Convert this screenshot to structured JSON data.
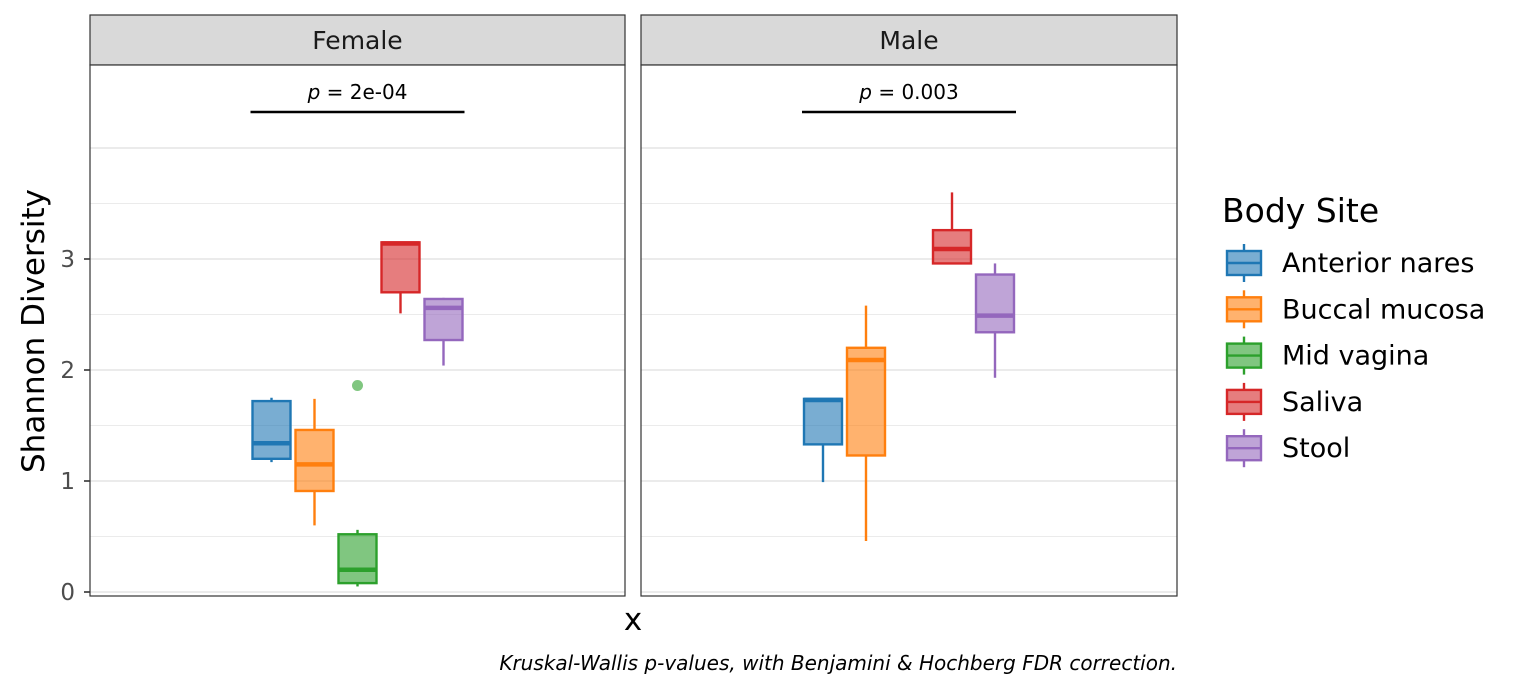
{
  "chart_data": {
    "type": "box",
    "facets": [
      "Female",
      "Male"
    ],
    "xlabel": "x",
    "ylabel": "Shannon Diversity",
    "ylim": [
      -0.05,
      4.75
    ],
    "yticks": [
      0,
      1,
      2,
      3
    ],
    "grid": true,
    "legend": {
      "title": "Body Site",
      "position": "right",
      "entries": [
        "Anterior nares",
        "Buccal mucosa",
        "Mid vagina",
        "Saliva",
        "Stool"
      ]
    },
    "colors": {
      "Anterior nares": "#1f77b4",
      "Buccal mucosa": "#ff7f0e",
      "Mid vagina": "#2ca02c",
      "Saliva": "#d62728",
      "Stool": "#9467bd"
    },
    "annotations": [
      {
        "facet": "Female",
        "label": "p",
        "text": " = 2e-04"
      },
      {
        "facet": "Male",
        "label": "p",
        "text": " = 0.003"
      }
    ],
    "boxes": [
      {
        "facet": "Female",
        "group": "Anterior nares",
        "lower_whisker": 1.17,
        "q1": 1.2,
        "median": 1.34,
        "q3": 1.72,
        "upper_whisker": 1.75,
        "outliers": []
      },
      {
        "facet": "Female",
        "group": "Buccal mucosa",
        "lower_whisker": 0.6,
        "q1": 0.91,
        "median": 1.15,
        "q3": 1.46,
        "upper_whisker": 1.74,
        "outliers": []
      },
      {
        "facet": "Female",
        "group": "Mid vagina",
        "lower_whisker": 0.05,
        "q1": 0.08,
        "median": 0.2,
        "q3": 0.52,
        "upper_whisker": 0.56,
        "outliers": [
          1.86
        ]
      },
      {
        "facet": "Female",
        "group": "Saliva",
        "lower_whisker": 2.51,
        "q1": 2.7,
        "median": 3.14,
        "q3": 3.15,
        "upper_whisker": 3.15,
        "outliers": []
      },
      {
        "facet": "Female",
        "group": "Stool",
        "lower_whisker": 2.04,
        "q1": 2.27,
        "median": 2.56,
        "q3": 2.64,
        "upper_whisker": 2.65,
        "outliers": []
      },
      {
        "facet": "Male",
        "group": "Anterior nares",
        "lower_whisker": 0.99,
        "q1": 1.33,
        "median": 1.73,
        "q3": 1.74,
        "upper_whisker": 1.74,
        "outliers": []
      },
      {
        "facet": "Male",
        "group": "Buccal mucosa",
        "lower_whisker": 0.46,
        "q1": 1.23,
        "median": 2.09,
        "q3": 2.2,
        "upper_whisker": 2.58,
        "outliers": []
      },
      {
        "facet": "Male",
        "group": "Saliva",
        "lower_whisker": 2.96,
        "q1": 2.96,
        "median": 3.09,
        "q3": 3.26,
        "upper_whisker": 3.6,
        "outliers": []
      },
      {
        "facet": "Male",
        "group": "Stool",
        "lower_whisker": 1.93,
        "q1": 2.34,
        "median": 2.49,
        "q3": 2.86,
        "upper_whisker": 2.96,
        "outliers": []
      }
    ],
    "caption": "Kruskal-Wallis p-values, with Benjamini & Hochberg FDR correction."
  }
}
